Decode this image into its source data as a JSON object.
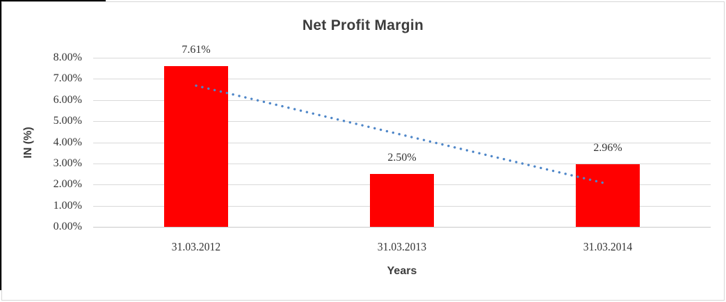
{
  "chart_data": {
    "type": "bar",
    "title": "Net Profit Margin",
    "xlabel": "Years",
    "ylabel": "IN (%)",
    "categories": [
      "31.03.2012",
      "31.03.2013",
      "31.03.2014"
    ],
    "values": [
      7.61,
      2.5,
      2.96
    ],
    "data_labels": [
      "7.61%",
      "2.50%",
      "2.96%"
    ],
    "y_ticks": [
      "0.00%",
      "1.00%",
      "2.00%",
      "3.00%",
      "4.00%",
      "5.00%",
      "6.00%",
      "7.00%",
      "8.00%"
    ],
    "ylim": [
      0,
      8
    ],
    "grid": true,
    "legend": false,
    "trendline": {
      "type": "linear",
      "style": "dotted",
      "start_value": 6.68,
      "end_value": 2.03
    },
    "colors": {
      "bar": "#FF0000",
      "trendline": "#4E86C8",
      "gridline": "#D9D9D9",
      "text": "#3C3C3C"
    }
  }
}
